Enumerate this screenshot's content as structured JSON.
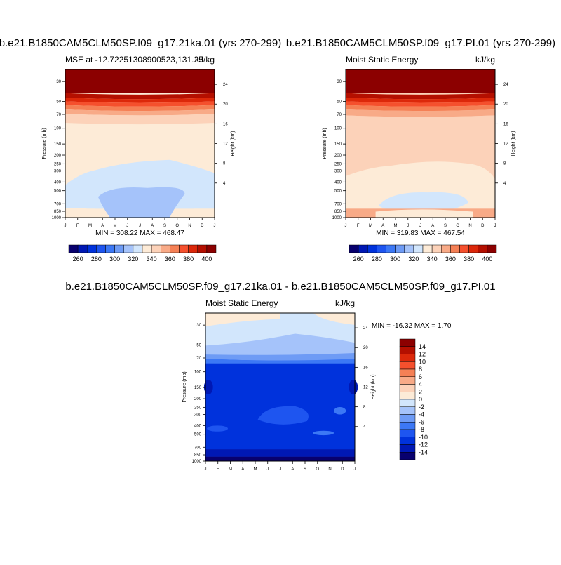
{
  "chart_data": [
    {
      "type": "heatmap",
      "title": "b.e21.B1850CAM5CLM50SP.f09_g17.21ka.01 (yrs 270-299)",
      "left_label": "MSE at -12.72251308900523,131.25",
      "right_label": "kJ/kg",
      "xlabel": "",
      "ylabel": "Pressure (mb)",
      "y2label": "Height (km)",
      "x_ticks": [
        "J",
        "F",
        "M",
        "A",
        "M",
        "J",
        "J",
        "A",
        "S",
        "O",
        "N",
        "D",
        "J"
      ],
      "y_ticks": [
        30,
        50,
        70,
        100,
        150,
        200,
        250,
        300,
        400,
        500,
        700,
        850,
        1000
      ],
      "y2_ticks": [
        24,
        20,
        16,
        12,
        8,
        4
      ],
      "min_max": "MIN = 308.22 MAX = 468.47",
      "contour_levels": [
        260,
        270,
        280,
        290,
        300,
        310,
        320,
        330,
        340,
        350,
        360,
        370,
        380,
        390,
        400
      ],
      "colorbar_labels": [
        260,
        280,
        300,
        320,
        340,
        360,
        380,
        400
      ]
    },
    {
      "type": "heatmap",
      "title": "b.e21.B1850CAM5CLM50SP.f09_g17.PI.01 (yrs 270-299)",
      "left_label": "Moist Static Energy",
      "right_label": "kJ/kg",
      "xlabel": "",
      "ylabel": "Pressure (mb)",
      "y2label": "Height (km)",
      "x_ticks": [
        "J",
        "F",
        "M",
        "A",
        "M",
        "J",
        "J",
        "A",
        "S",
        "O",
        "N",
        "D",
        "J"
      ],
      "y_ticks": [
        30,
        50,
        70,
        100,
        150,
        200,
        250,
        300,
        400,
        500,
        700,
        850,
        1000
      ],
      "y2_ticks": [
        24,
        20,
        16,
        12,
        8,
        4
      ],
      "min_max": "MIN = 319.83 MAX = 467.54",
      "contour_levels": [
        260,
        270,
        280,
        290,
        300,
        310,
        320,
        330,
        340,
        350,
        360,
        370,
        380,
        390,
        400
      ],
      "colorbar_labels": [
        260,
        280,
        300,
        320,
        340,
        360,
        380,
        400
      ]
    },
    {
      "type": "heatmap",
      "title": "b.e21.B1850CAM5CLM50SP.f09_g17.21ka.01 - b.e21.B1850CAM5CLM50SP.f09_g17.PI.01",
      "left_label": "Moist Static Energy",
      "right_label": "kJ/kg",
      "xlabel": "",
      "ylabel": "Pressure (mb)",
      "y2label": "Height (km)",
      "x_ticks": [
        "J",
        "F",
        "M",
        "A",
        "M",
        "J",
        "J",
        "A",
        "S",
        "O",
        "N",
        "D",
        "J"
      ],
      "y_ticks": [
        30,
        50,
        70,
        100,
        150,
        200,
        250,
        300,
        400,
        500,
        700,
        850,
        1000
      ],
      "y2_ticks": [
        24,
        20,
        16,
        12,
        8,
        4
      ],
      "min_max": "MIN = -16.32 MAX =   1.70",
      "contour_levels": [
        -14,
        -12,
        -10,
        -8,
        -6,
        -4,
        -2,
        0,
        2,
        4,
        6,
        8,
        10,
        12,
        14
      ],
      "colorbar_labels": [
        14,
        12,
        10,
        8,
        6,
        4,
        2,
        0,
        -2,
        -4,
        -6,
        -8,
        -10,
        -12,
        -14
      ]
    }
  ],
  "colors": {
    "colormap": [
      "#08006e",
      "#0018b4",
      "#0032dc",
      "#1e55f0",
      "#3c78f5",
      "#6e9bf5",
      "#a5c3fa",
      "#d2e6fc",
      "#fdebd7",
      "#fcd2b9",
      "#f8aa87",
      "#f58055",
      "#f5502d",
      "#dc280a",
      "#b40f00",
      "#8c0000"
    ]
  }
}
